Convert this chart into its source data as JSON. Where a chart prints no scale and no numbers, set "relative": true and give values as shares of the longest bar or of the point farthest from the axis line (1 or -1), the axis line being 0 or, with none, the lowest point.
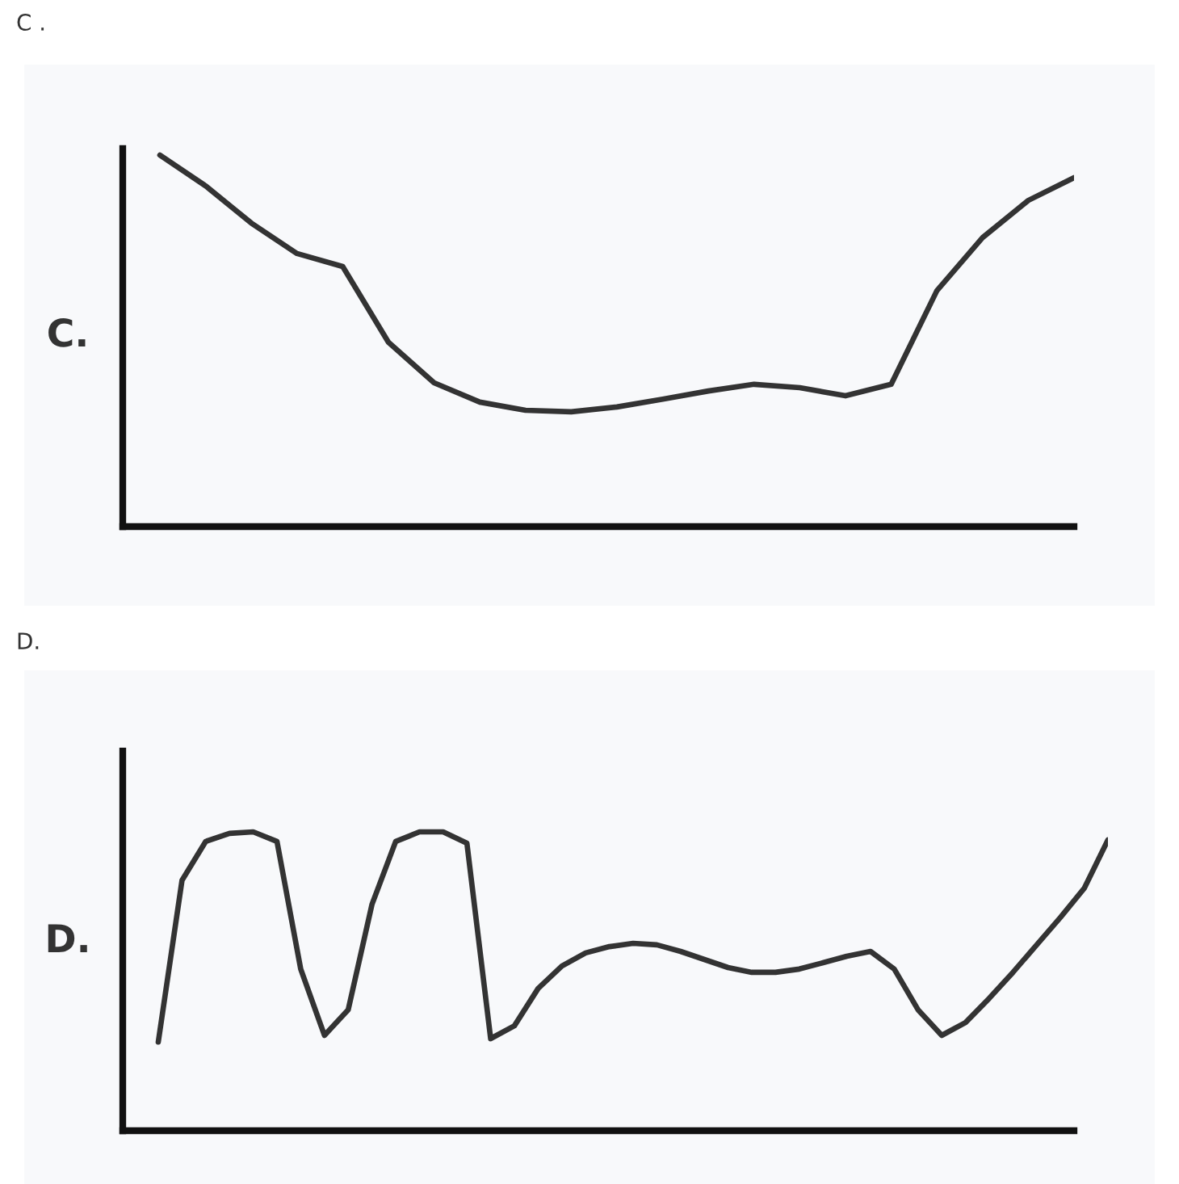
{
  "chart_data": [
    {
      "type": "line",
      "title": "C .",
      "ylabel": "C.",
      "relative": true,
      "categories": [
        null,
        null,
        null,
        null,
        null,
        null,
        null,
        null,
        null,
        null,
        null,
        null,
        null,
        null,
        null,
        null,
        null,
        null,
        null,
        null,
        null
      ],
      "series": [
        {
          "color": "#333333",
          "values": [
            1.0,
            0.917,
            0.817,
            0.735,
            0.7,
            0.496,
            0.387,
            0.335,
            0.313,
            0.309,
            0.322,
            0.343,
            0.365,
            0.383,
            0.374,
            0.352,
            0.383,
            0.635,
            0.778,
            0.878,
            0.939
          ]
        }
      ]
    },
    {
      "type": "line",
      "title": "D.",
      "ylabel": "D.",
      "relative": true,
      "categories": [
        null,
        null,
        null,
        null,
        null,
        null,
        null,
        null,
        null,
        null,
        null,
        null,
        null,
        null,
        null,
        null,
        null,
        null,
        null,
        null,
        null,
        null,
        null,
        null,
        null,
        null,
        null,
        null,
        null,
        null,
        null,
        null,
        null,
        null,
        null,
        null,
        null,
        null,
        null,
        null,
        null
      ],
      "series": [
        {
          "color": "#333333",
          "values": [
            0.297,
            0.838,
            0.968,
            0.995,
            1.0,
            0.968,
            0.541,
            0.319,
            0.405,
            0.757,
            0.968,
            1.0,
            1.0,
            0.962,
            0.308,
            0.351,
            0.476,
            0.551,
            0.595,
            0.616,
            0.627,
            0.622,
            0.6,
            0.573,
            0.546,
            0.53,
            0.53,
            0.541,
            0.562,
            0.584,
            0.6,
            0.541,
            0.405,
            0.319,
            0.362,
            0.443,
            0.53,
            0.622,
            0.714,
            0.811,
            0.973
          ]
        }
      ]
    }
  ]
}
